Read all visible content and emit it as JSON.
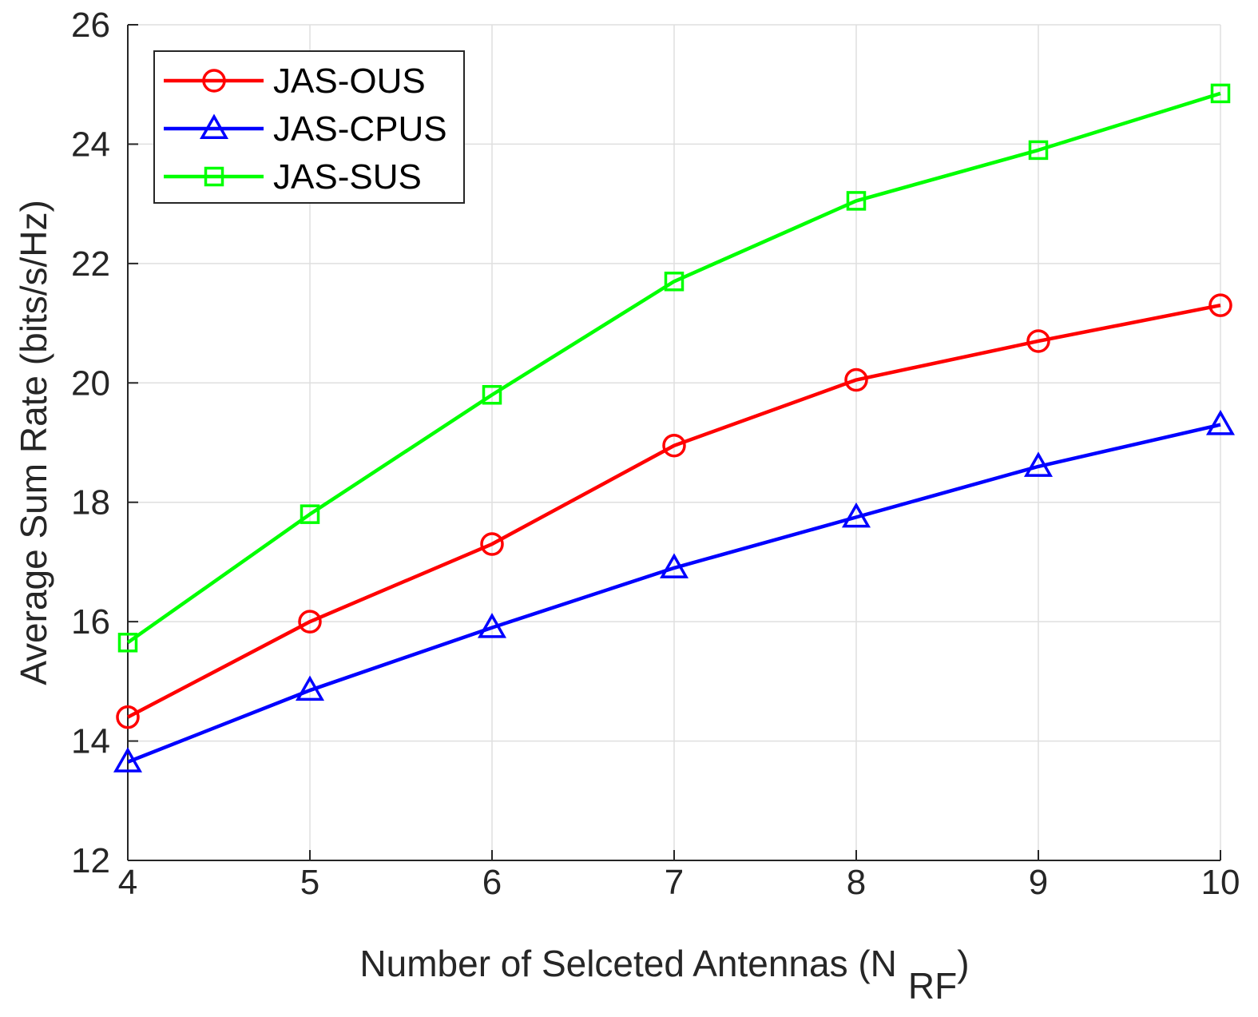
{
  "chart_data": {
    "type": "line",
    "title": "",
    "xlabel": "Number of Selceted Antennas (N",
    "xlabel_subscript": "RF",
    "xlabel_suffix": ")",
    "ylabel": "Average Sum Rate (bits/s/Hz)",
    "x": [
      4,
      5,
      6,
      7,
      8,
      9,
      10
    ],
    "xlim": [
      4,
      10
    ],
    "ylim": [
      12,
      26
    ],
    "xticks": [
      "4",
      "5",
      "6",
      "7",
      "8",
      "9",
      "10"
    ],
    "yticks": [
      "12",
      "14",
      "16",
      "18",
      "20",
      "22",
      "24",
      "26"
    ],
    "grid": true,
    "legend_position": "top-left",
    "series": [
      {
        "name": "JAS-OUS",
        "color": "#ff0000",
        "marker": "circle",
        "values": [
          14.4,
          16.0,
          17.3,
          18.95,
          20.05,
          20.7,
          21.3
        ]
      },
      {
        "name": "JAS-CPUS",
        "color": "#0000ff",
        "marker": "triangle",
        "values": [
          13.65,
          14.85,
          15.9,
          16.9,
          17.75,
          18.6,
          19.3
        ]
      },
      {
        "name": "JAS-SUS",
        "color": "#00ff00",
        "marker": "square",
        "values": [
          15.65,
          17.8,
          19.8,
          21.7,
          23.05,
          23.9,
          24.85
        ]
      }
    ]
  }
}
